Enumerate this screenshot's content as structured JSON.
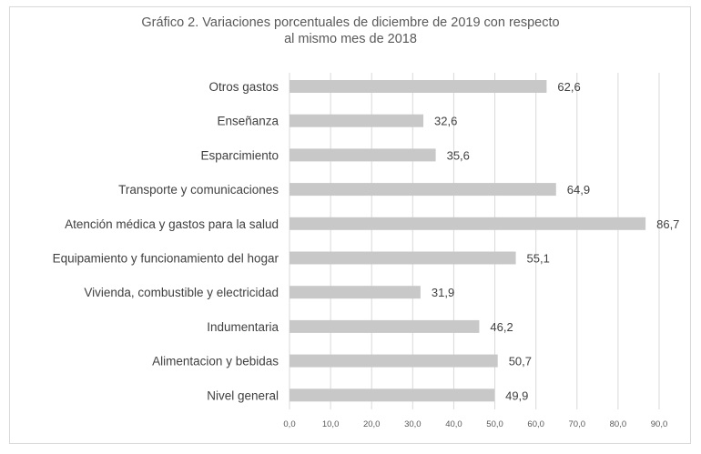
{
  "chart_data": {
    "type": "bar",
    "orientation": "horizontal",
    "title_lines": [
      "Gráfico 2. Variaciones porcentuales de diciembre de 2019 con respecto",
      "al mismo mes de 2018"
    ],
    "categories": [
      "Otros gastos",
      "Enseñanza",
      "Esparcimiento",
      "Transporte y comunicaciones",
      "Atención médica y gastos para la salud",
      "Equipamiento y funcionamiento del hogar",
      "Vivienda, combustible y electricidad",
      "Indumentaria",
      "Alimentacion y bebidas",
      "Nivel general"
    ],
    "values": [
      62.6,
      32.6,
      35.6,
      64.9,
      86.7,
      55.1,
      31.9,
      46.2,
      50.7,
      49.9
    ],
    "value_labels": [
      "62,6",
      "32,6",
      "35,6",
      "64,9",
      "86,7",
      "55,1",
      "31,9",
      "46,2",
      "50,7",
      "49,9"
    ],
    "xticks": [
      0,
      10,
      20,
      30,
      40,
      50,
      60,
      70,
      80,
      90
    ],
    "xtick_labels": [
      "0,0",
      "10,0",
      "20,0",
      "30,0",
      "40,0",
      "50,0",
      "60,0",
      "70,0",
      "80,0",
      "90,0"
    ],
    "xlim": [
      0,
      90
    ],
    "grid": true,
    "legend": false,
    "bar_color": "#c8c8c8",
    "grid_color": "#d9d9d9"
  }
}
